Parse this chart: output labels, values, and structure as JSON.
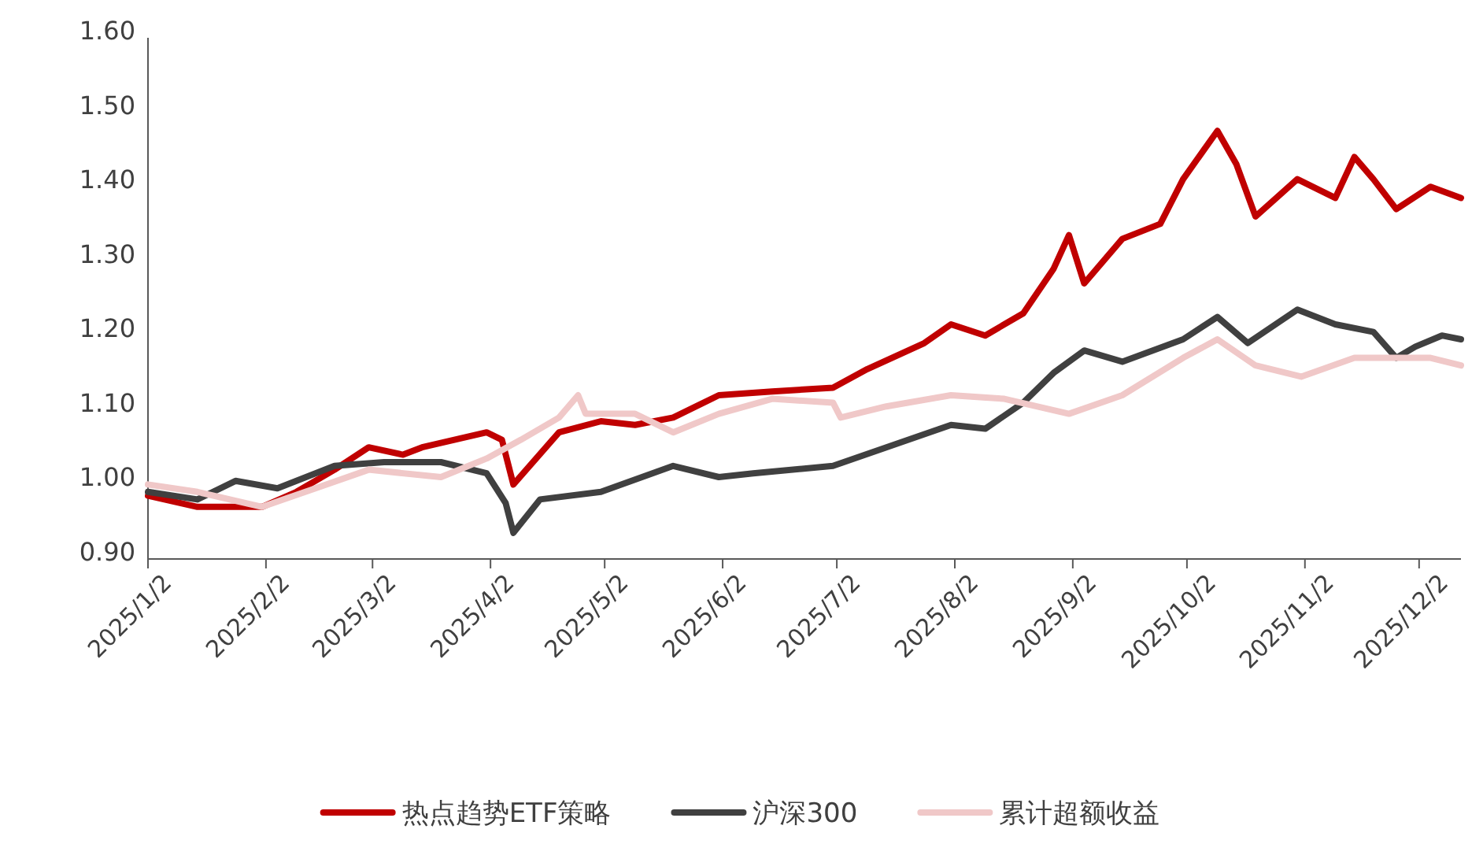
{
  "chart_data": {
    "type": "line",
    "xlim": [
      "2025-01-02",
      "2025-12-13"
    ],
    "ylim": [
      0.9,
      1.6
    ],
    "yticks": [
      {
        "value": 0.9,
        "label": "0.90"
      },
      {
        "value": 1.0,
        "label": "1.00"
      },
      {
        "value": 1.1,
        "label": "1.10"
      },
      {
        "value": 1.2,
        "label": "1.20"
      },
      {
        "value": 1.3,
        "label": "1.30"
      },
      {
        "value": 1.4,
        "label": "1.40"
      },
      {
        "value": 1.5,
        "label": "1.50"
      },
      {
        "value": 1.6,
        "label": "1.60"
      }
    ],
    "xticks": [
      {
        "value": "2025-01-02",
        "label": "2025/1/2"
      },
      {
        "value": "2025-02-02",
        "label": "2025/2/2"
      },
      {
        "value": "2025-03-02",
        "label": "2025/3/2"
      },
      {
        "value": "2025-04-02",
        "label": "2025/4/2"
      },
      {
        "value": "2025-05-02",
        "label": "2025/5/2"
      },
      {
        "value": "2025-06-02",
        "label": "2025/6/2"
      },
      {
        "value": "2025-07-02",
        "label": "2025/7/2"
      },
      {
        "value": "2025-08-02",
        "label": "2025/8/2"
      },
      {
        "value": "2025-09-02",
        "label": "2025/9/2"
      },
      {
        "value": "2025-10-02",
        "label": "2025/10/2"
      },
      {
        "value": "2025-11-02",
        "label": "2025/11/2"
      },
      {
        "value": "2025-12-02",
        "label": "2025/12/2"
      }
    ],
    "grid": false,
    "legend": "bottom",
    "marker": "none",
    "line_style": "solid",
    "series": [
      {
        "name": "热点趋势ETF策略",
        "color": "#c00000",
        "x": [
          "2025-01-02",
          "2025-01-15",
          "2025-02-01",
          "2025-02-10",
          "2025-02-20",
          "2025-03-01",
          "2025-03-10",
          "2025-03-15",
          "2025-04-01",
          "2025-04-05",
          "2025-04-08",
          "2025-04-20",
          "2025-05-01",
          "2025-05-10",
          "2025-05-20",
          "2025-06-01",
          "2025-06-15",
          "2025-07-01",
          "2025-07-10",
          "2025-07-25",
          "2025-08-01",
          "2025-08-10",
          "2025-08-20",
          "2025-08-28",
          "2025-09-01",
          "2025-09-05",
          "2025-09-15",
          "2025-09-25",
          "2025-10-01",
          "2025-10-10",
          "2025-10-15",
          "2025-10-20",
          "2025-10-31",
          "2025-11-10",
          "2025-11-15",
          "2025-11-20",
          "2025-11-26",
          "2025-12-05",
          "2025-12-13"
        ],
        "values": [
          0.985,
          0.97,
          0.97,
          0.99,
          1.02,
          1.05,
          1.04,
          1.05,
          1.07,
          1.06,
          1.0,
          1.07,
          1.085,
          1.08,
          1.09,
          1.12,
          1.125,
          1.13,
          1.155,
          1.19,
          1.215,
          1.2,
          1.23,
          1.29,
          1.335,
          1.27,
          1.33,
          1.35,
          1.41,
          1.475,
          1.43,
          1.36,
          1.41,
          1.385,
          1.44,
          1.41,
          1.37,
          1.4,
          1.385
        ]
      },
      {
        "name": "沪深300",
        "color": "#404040",
        "x": [
          "2025-01-02",
          "2025-01-15",
          "2025-01-25",
          "2025-02-05",
          "2025-02-20",
          "2025-03-05",
          "2025-03-20",
          "2025-04-01",
          "2025-04-06",
          "2025-04-08",
          "2025-04-15",
          "2025-05-01",
          "2025-05-20",
          "2025-06-01",
          "2025-06-10",
          "2025-07-01",
          "2025-07-15",
          "2025-08-01",
          "2025-08-10",
          "2025-08-20",
          "2025-08-28",
          "2025-09-05",
          "2025-09-15",
          "2025-10-01",
          "2025-10-10",
          "2025-10-18",
          "2025-10-31",
          "2025-11-10",
          "2025-11-20",
          "2025-11-26",
          "2025-12-01",
          "2025-12-08",
          "2025-12-13"
        ],
        "values": [
          0.99,
          0.98,
          1.005,
          0.995,
          1.025,
          1.03,
          1.03,
          1.015,
          0.975,
          0.935,
          0.98,
          0.99,
          1.025,
          1.01,
          1.015,
          1.025,
          1.05,
          1.08,
          1.075,
          1.11,
          1.15,
          1.18,
          1.165,
          1.195,
          1.225,
          1.19,
          1.235,
          1.215,
          1.205,
          1.17,
          1.185,
          1.2,
          1.195
        ]
      },
      {
        "name": "累计超额收益",
        "color": "#f0c8c8",
        "x": [
          "2025-01-02",
          "2025-01-15",
          "2025-02-01",
          "2025-02-15",
          "2025-03-01",
          "2025-03-20",
          "2025-04-01",
          "2025-04-10",
          "2025-04-20",
          "2025-04-25",
          "2025-04-27",
          "2025-05-10",
          "2025-05-20",
          "2025-06-01",
          "2025-06-15",
          "2025-07-01",
          "2025-07-03",
          "2025-07-15",
          "2025-08-01",
          "2025-08-15",
          "2025-09-01",
          "2025-09-15",
          "2025-10-01",
          "2025-10-10",
          "2025-10-20",
          "2025-11-01",
          "2025-11-15",
          "2025-11-26",
          "2025-12-05",
          "2025-12-13"
        ],
        "values": [
          1.0,
          0.99,
          0.97,
          0.995,
          1.02,
          1.01,
          1.035,
          1.06,
          1.09,
          1.12,
          1.095,
          1.095,
          1.07,
          1.095,
          1.115,
          1.11,
          1.09,
          1.105,
          1.12,
          1.115,
          1.095,
          1.12,
          1.17,
          1.195,
          1.16,
          1.145,
          1.17,
          1.17,
          1.17,
          1.16
        ]
      }
    ]
  }
}
